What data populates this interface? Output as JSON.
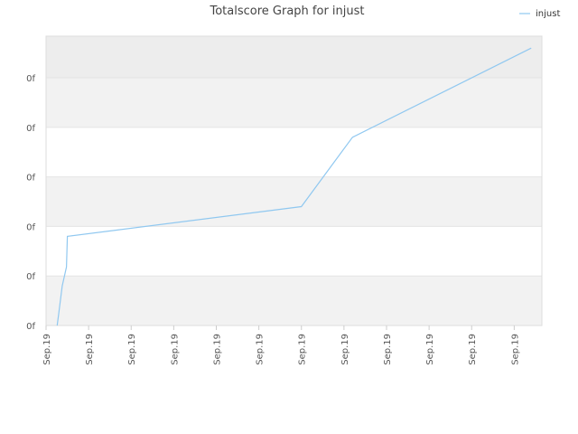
{
  "chart_data": {
    "type": "line",
    "title": "Totalscore Graph for injust",
    "xlabel": "",
    "ylabel": "",
    "x_tick_labels": [
      "Sep.19",
      "Sep.19",
      "Sep.19",
      "Sep.19",
      "Sep.19",
      "Sep.19",
      "Sep.19",
      "Sep.19",
      "Sep.19",
      "Sep.19",
      "Sep.19",
      "Sep.19"
    ],
    "y_tick_labels": [
      "0f",
      "0f",
      "0f",
      "0f",
      "0f",
      "0f"
    ],
    "xlim": [
      0,
      11.65
    ],
    "ylim": [
      0,
      5.84
    ],
    "grid": true,
    "legend_position": "top-right",
    "series": [
      {
        "name": "injust",
        "color": "#90c8f0",
        "x": [
          0.26,
          0.3,
          0.38,
          0.48,
          0.5,
          6.0,
          7.2,
          11.4
        ],
        "y": [
          0.0,
          0.25,
          0.8,
          1.18,
          1.8,
          2.4,
          3.8,
          5.6
        ]
      }
    ]
  }
}
